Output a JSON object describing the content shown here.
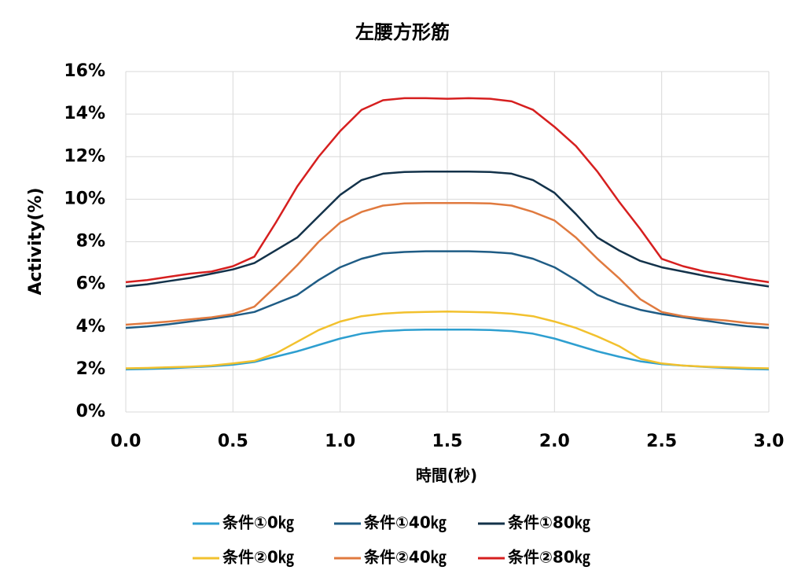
{
  "chart_data": {
    "type": "line",
    "title": "左腰方形筋",
    "x_label": "時間(秒)",
    "y_label": "Activity(%)",
    "x": [
      0,
      0.1,
      0.2,
      0.3,
      0.4,
      0.5,
      0.6,
      0.7,
      0.8,
      0.9,
      1.0,
      1.1,
      1.2,
      1.3,
      1.4,
      1.5,
      1.6,
      1.7,
      1.8,
      1.9,
      2.0,
      2.1,
      2.2,
      2.3,
      2.4,
      2.5,
      2.6,
      2.7,
      2.8,
      2.9,
      3.0
    ],
    "xlim": [
      0,
      3
    ],
    "xticks": [
      {
        "value": 0,
        "label": "0.0"
      },
      0.5,
      {
        "value": 1,
        "label": "1.0"
      },
      1.5,
      {
        "value": 2,
        "label": "2.0"
      },
      2.5,
      {
        "value": 3,
        "label": "3.0"
      }
    ],
    "ylim": [
      0,
      16
    ],
    "yticks": [
      {
        "value": 0,
        "label": "0%"
      },
      {
        "value": 2,
        "label": "2%"
      },
      {
        "value": 4,
        "label": "4%"
      },
      {
        "value": 6,
        "label": "6%"
      },
      {
        "value": 8,
        "label": "8%"
      },
      {
        "value": 10,
        "label": "10%"
      },
      {
        "value": 12,
        "label": "12%"
      },
      {
        "value": 14,
        "label": "14%"
      },
      {
        "value": 16,
        "label": "16%"
      }
    ],
    "grid": true,
    "series": [
      {
        "name": "条件①0㎏",
        "color": "#2e9fd0",
        "values": [
          2.0,
          2.02,
          2.05,
          2.1,
          2.15,
          2.22,
          2.35,
          2.6,
          2.85,
          3.15,
          3.45,
          3.68,
          3.8,
          3.85,
          3.87,
          3.87,
          3.87,
          3.85,
          3.8,
          3.68,
          3.45,
          3.15,
          2.85,
          2.6,
          2.38,
          2.25,
          2.18,
          2.12,
          2.07,
          2.02,
          2.0
        ]
      },
      {
        "name": "条件①40㎏",
        "color": "#1f5c85",
        "values": [
          3.95,
          4.02,
          4.12,
          4.25,
          4.38,
          4.52,
          4.7,
          5.1,
          5.5,
          6.2,
          6.8,
          7.2,
          7.45,
          7.52,
          7.55,
          7.55,
          7.55,
          7.52,
          7.45,
          7.2,
          6.8,
          6.2,
          5.5,
          5.1,
          4.8,
          4.6,
          4.45,
          4.3,
          4.15,
          4.03,
          3.95
        ]
      },
      {
        "name": "条件①80㎏",
        "color": "#13324a",
        "values": [
          5.9,
          6.0,
          6.15,
          6.3,
          6.5,
          6.7,
          7.0,
          7.6,
          8.2,
          9.2,
          10.2,
          10.9,
          11.2,
          11.28,
          11.3,
          11.3,
          11.3,
          11.28,
          11.2,
          10.9,
          10.3,
          9.3,
          8.2,
          7.6,
          7.1,
          6.8,
          6.6,
          6.4,
          6.2,
          6.05,
          5.9
        ]
      },
      {
        "name": "条件②0㎏",
        "color": "#f2c12e",
        "values": [
          2.05,
          2.07,
          2.1,
          2.13,
          2.18,
          2.28,
          2.4,
          2.75,
          3.3,
          3.85,
          4.25,
          4.5,
          4.62,
          4.68,
          4.7,
          4.72,
          4.7,
          4.68,
          4.62,
          4.5,
          4.25,
          3.95,
          3.55,
          3.1,
          2.5,
          2.28,
          2.18,
          2.13,
          2.1,
          2.07,
          2.05
        ]
      },
      {
        "name": "条件②40㎏",
        "color": "#e07a3f",
        "values": [
          4.1,
          4.17,
          4.25,
          4.35,
          4.45,
          4.6,
          4.95,
          5.9,
          6.9,
          8.0,
          8.9,
          9.4,
          9.7,
          9.8,
          9.82,
          9.82,
          9.82,
          9.8,
          9.7,
          9.4,
          9.0,
          8.2,
          7.2,
          6.3,
          5.3,
          4.7,
          4.5,
          4.38,
          4.3,
          4.18,
          4.1
        ]
      },
      {
        "name": "条件②80㎏",
        "color": "#d61f1f",
        "values": [
          6.1,
          6.2,
          6.35,
          6.5,
          6.6,
          6.85,
          7.3,
          8.9,
          10.6,
          12.0,
          13.2,
          14.2,
          14.65,
          14.75,
          14.75,
          14.72,
          14.75,
          14.72,
          14.6,
          14.2,
          13.4,
          12.5,
          11.3,
          9.9,
          8.6,
          7.2,
          6.85,
          6.6,
          6.45,
          6.25,
          6.1
        ]
      }
    ]
  }
}
